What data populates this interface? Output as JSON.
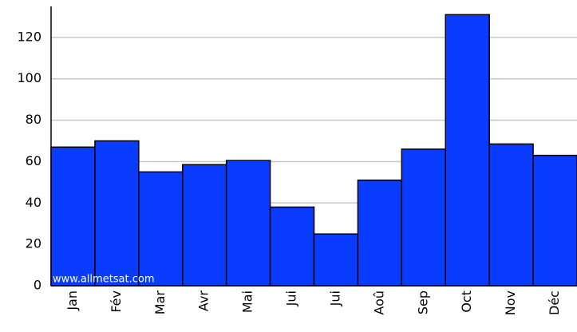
{
  "chart_data": {
    "type": "bar",
    "categories": [
      "Jan",
      "Fév",
      "Mar",
      "Avr",
      "Mai",
      "Jui",
      "Jui",
      "Aoû",
      "Sep",
      "Oct",
      "Nov",
      "Déc"
    ],
    "values": [
      67,
      70,
      55,
      58.5,
      60.5,
      38,
      25,
      51,
      66,
      131,
      68.5,
      63
    ],
    "color": "#0a3cff",
    "ylim": [
      0,
      135
    ],
    "yticks": [
      0,
      20,
      40,
      60,
      80,
      100,
      120
    ],
    "grid": true,
    "watermark": "www.allmetsat.com"
  }
}
